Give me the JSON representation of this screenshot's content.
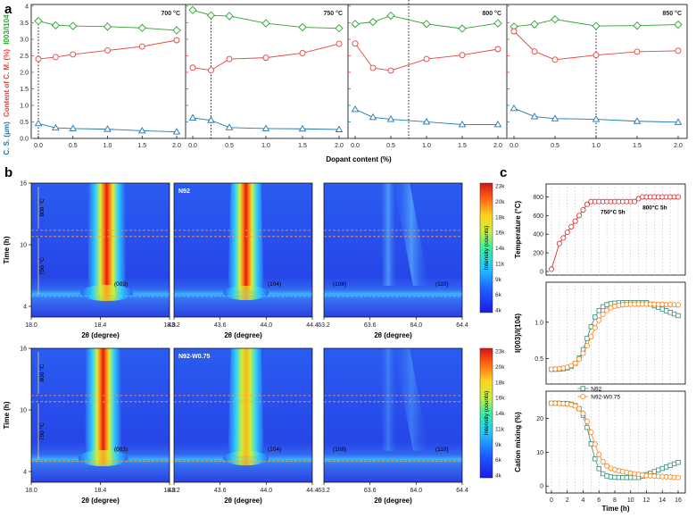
{
  "panel_labels": {
    "a": "a",
    "b": "b",
    "c": "c"
  },
  "colors": {
    "green": "#2ca02c",
    "red": "#e8433c",
    "blue": "#1f77b4",
    "orange": "#ff7f0e",
    "teal": "#2f8c7a"
  },
  "chart_data": [
    {
      "id": "a",
      "type": "line",
      "xlabel": "Dopant content (%)",
      "ylabel_parts": [
        "C. S. (μm)",
        "Content of C. M. (%)",
        "I003/I104"
      ],
      "y_ticks": [
        "0.0",
        "0.5",
        "1.0",
        "1.5",
        "2.0",
        "2.5",
        "3.0",
        "3.5",
        "4"
      ],
      "x_ticks": [
        "0.0",
        "0.5",
        "1.0",
        "1.5",
        "2.0"
      ],
      "x": [
        0,
        0.25,
        0.5,
        1.0,
        1.5,
        2.0
      ],
      "panels": [
        {
          "temp": "700 °C",
          "optimum": 0,
          "green": [
            3.55,
            3.42,
            3.4,
            3.38,
            3.34,
            3.27
          ],
          "red": [
            2.4,
            2.46,
            2.54,
            2.66,
            2.78,
            2.97
          ],
          "blue": [
            0.45,
            0.32,
            0.3,
            0.28,
            0.23,
            0.2
          ]
        },
        {
          "temp": "750 °C",
          "optimum": 0.25,
          "green": [
            3.88,
            3.72,
            3.7,
            3.48,
            3.36,
            3.33
          ],
          "red": [
            2.14,
            2.06,
            2.4,
            2.44,
            2.58,
            2.86
          ],
          "blue": [
            0.62,
            0.55,
            0.33,
            0.3,
            0.29,
            0.27
          ]
        },
        {
          "temp": "800 °C",
          "optimum": 0.75,
          "green": [
            3.46,
            3.52,
            3.71,
            3.46,
            3.32,
            3.48
          ],
          "red": [
            2.87,
            2.13,
            2.05,
            2.4,
            2.52,
            2.7
          ],
          "blue": [
            0.88,
            0.64,
            0.58,
            0.5,
            0.42,
            0.42
          ]
        },
        {
          "temp": "850 °C",
          "optimum": 1.0,
          "green": [
            3.38,
            3.45,
            3.6,
            3.4,
            3.41,
            3.44
          ],
          "red": [
            3.24,
            2.63,
            2.38,
            2.52,
            2.62,
            2.65
          ],
          "blue": [
            0.91,
            0.66,
            0.6,
            0.58,
            0.52,
            0.49
          ]
        }
      ]
    },
    {
      "id": "b",
      "type": "heatmap",
      "ylabel": "Time (h)",
      "xlabel": "2θ (degree)",
      "y_ticks": [
        "4",
        "10",
        "16"
      ],
      "temps": [
        "800 °C",
        "750 °C"
      ],
      "colorbar_label": "Intensity (counts)",
      "colorbar_ticks": [
        "23k",
        "20k",
        "18k",
        "16k",
        "14k",
        "11k",
        "9k",
        "6k",
        "4k"
      ],
      "columns": [
        {
          "peak": "(003)",
          "x_ticks": [
            "18.0",
            "18.4",
            "18.8"
          ]
        },
        {
          "peak": "(104)",
          "x_ticks": [
            "43.2",
            "43.6",
            "44.0",
            "44.4"
          ]
        },
        {
          "peak_left": "(108)",
          "peak_right": "(110)",
          "x_ticks": [
            "63.2",
            "63.6",
            "64.0",
            "64.4"
          ]
        }
      ],
      "rows": [
        {
          "sample": "N92"
        },
        {
          "sample": "N92-W0.75"
        }
      ]
    },
    {
      "id": "c",
      "type": "line",
      "xlabel": "Time (h)",
      "x_ticks": [
        "0",
        "2",
        "4",
        "6",
        "8",
        "10",
        "12",
        "14",
        "16"
      ],
      "top": {
        "ylabel": "Temperature (°C)",
        "y_ticks": [
          "0",
          "200",
          "400",
          "600",
          "800"
        ],
        "ylim": [
          0,
          900
        ],
        "x": [
          0,
          1,
          1.5,
          2,
          2.5,
          3,
          3.5,
          4,
          4.5,
          5,
          5.5,
          6,
          6.5,
          7,
          7.5,
          8,
          8.5,
          9,
          9.5,
          10,
          10.5,
          11,
          11.5,
          12,
          12.5,
          13,
          13.5,
          14,
          14.5,
          15,
          15.5,
          16
        ],
        "y": [
          25,
          300,
          360,
          420,
          480,
          540,
          600,
          660,
          720,
          750,
          750,
          750,
          750,
          750,
          750,
          750,
          750,
          750,
          750,
          750,
          750,
          780,
          800,
          800,
          800,
          800,
          800,
          800,
          800,
          800,
          800,
          800
        ],
        "annotations": [
          "750°C 5h",
          "800°C 5h"
        ]
      },
      "middle": {
        "ylabel": "I(003)/I(104)",
        "y_ticks": [
          "0.5",
          "1.0"
        ],
        "ylim": [
          0.2,
          1.5
        ],
        "legend": [
          "N92",
          "N92-W0.75"
        ]
      },
      "bottom": {
        "ylabel": "Cation mixing (%)",
        "y_ticks": [
          "0",
          "10",
          "20"
        ],
        "ylim": [
          -1,
          27
        ]
      }
    }
  ]
}
